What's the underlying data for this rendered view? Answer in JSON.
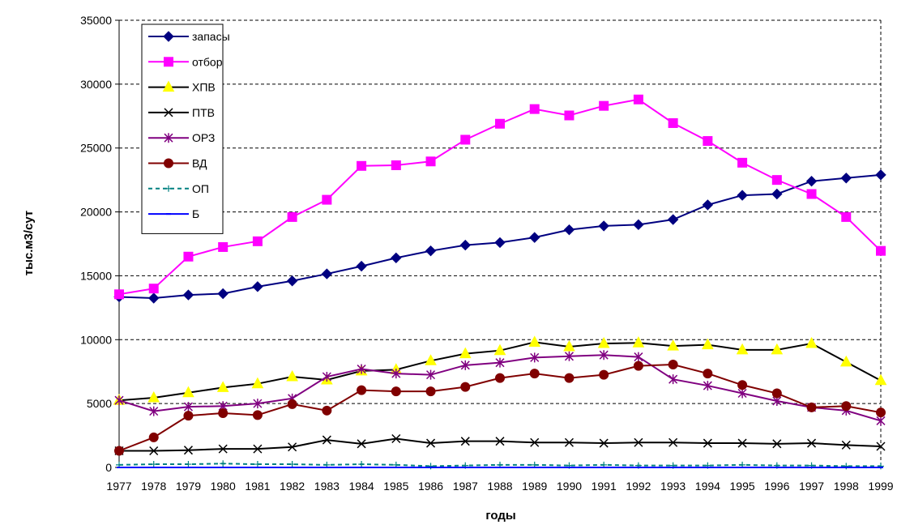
{
  "chart_data": {
    "type": "line",
    "xlabel": "годы",
    "ylabel": "тыс.м3/сут",
    "ylim": [
      0,
      35000
    ],
    "yticks": [
      0,
      5000,
      10000,
      15000,
      20000,
      25000,
      30000,
      35000
    ],
    "grid": "horizontal dashed",
    "legend_position": "top-left",
    "categories": [
      "1977",
      "1978",
      "1979",
      "1980",
      "1981",
      "1982",
      "1983",
      "1984",
      "1985",
      "1986",
      "1987",
      "1988",
      "1989",
      "1990",
      "1991",
      "1992",
      "1993",
      "1994",
      "1995",
      "1996",
      "1997",
      "1998",
      "1999"
    ],
    "series": [
      {
        "name": "запасы",
        "color": "#000080",
        "marker": "diamond",
        "dash": "solid",
        "values": [
          13350,
          13250,
          13500,
          13600,
          14150,
          14600,
          15150,
          15750,
          16400,
          16950,
          17400,
          17600,
          18000,
          18600,
          18900,
          19000,
          19400,
          20550,
          21300,
          21400,
          22400,
          22650,
          22900
        ]
      },
      {
        "name": "отбор",
        "color": "#ff00ff",
        "marker": "square",
        "dash": "solid",
        "values": [
          13550,
          14000,
          16500,
          17250,
          17700,
          19600,
          20950,
          23600,
          23650,
          23950,
          25650,
          26900,
          28050,
          27550,
          28300,
          28800,
          26950,
          25550,
          23850,
          22500,
          21400,
          19600,
          16950
        ]
      },
      {
        "name": "ХПВ",
        "color": "#000000",
        "marker": "triangle",
        "markerFill": "#ffff00",
        "dash": "solid",
        "values": [
          5250,
          5450,
          5850,
          6250,
          6550,
          7100,
          6850,
          7550,
          7650,
          8350,
          8900,
          9150,
          9800,
          9450,
          9700,
          9750,
          9500,
          9600,
          9200,
          9200,
          9700,
          8250,
          6800
        ]
      },
      {
        "name": "ПТВ",
        "color": "#000000",
        "marker": "x",
        "dash": "solid",
        "values": [
          1300,
          1300,
          1350,
          1450,
          1450,
          1600,
          2150,
          1850,
          2250,
          1900,
          2050,
          2050,
          1950,
          1950,
          1900,
          1950,
          1950,
          1900,
          1900,
          1850,
          1900,
          1750,
          1650
        ]
      },
      {
        "name": "ОРЗ",
        "color": "#800080",
        "marker": "asterisk",
        "dash": "solid",
        "values": [
          5250,
          4400,
          4750,
          4800,
          5000,
          5400,
          7100,
          7700,
          7350,
          7250,
          8000,
          8200,
          8600,
          8700,
          8800,
          8650,
          6900,
          6400,
          5800,
          5200,
          4700,
          4450,
          3650
        ]
      },
      {
        "name": "ВД",
        "color": "#800000",
        "marker": "circle",
        "dash": "solid",
        "values": [
          1300,
          2350,
          4050,
          4250,
          4100,
          4950,
          4450,
          6050,
          5950,
          5950,
          6300,
          7000,
          7350,
          7000,
          7250,
          7950,
          8050,
          7350,
          6450,
          5800,
          4700,
          4800,
          4300
        ]
      },
      {
        "name": "ОП",
        "color": "#008080",
        "marker": "plus",
        "dash": "dashed",
        "values": [
          200,
          250,
          250,
          300,
          250,
          250,
          200,
          250,
          200,
          100,
          150,
          200,
          200,
          150,
          200,
          150,
          150,
          150,
          200,
          150,
          150,
          100,
          100
        ]
      },
      {
        "name": "Б",
        "color": "#0000ff",
        "marker": "dash",
        "dash": "solid",
        "values": [
          0,
          0,
          0,
          0,
          0,
          0,
          0,
          0,
          0,
          0,
          0,
          0,
          0,
          0,
          0,
          0,
          0,
          0,
          0,
          0,
          0,
          0,
          0
        ]
      }
    ]
  }
}
